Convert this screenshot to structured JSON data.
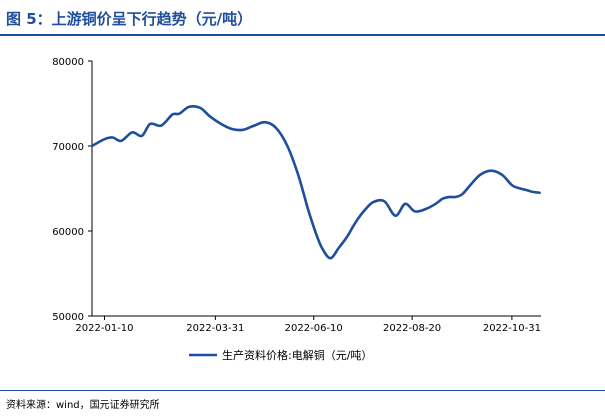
{
  "header": {
    "figure_title": "图 5：上游铜价呈下行趋势（元/吨）"
  },
  "footer": {
    "source": "资料来源：wind，国元证券研究所"
  },
  "colors": {
    "accent": "#1f4e9c",
    "series": "#1f4e9c",
    "axis": "#000000"
  },
  "chart_data": {
    "type": "line",
    "title": "",
    "xlabel": "",
    "ylabel": "",
    "ylim": [
      50000,
      80000
    ],
    "yticks": [
      50000,
      60000,
      70000,
      80000
    ],
    "xlim": [
      "2022-01-01",
      "2022-11-21"
    ],
    "xticks": [
      "2022-01-10",
      "2022-03-31",
      "2022-06-10",
      "2022-08-20",
      "2022-10-31"
    ],
    "grid": false,
    "legend": "bottom",
    "series": [
      {
        "name": "生产资料价格:电解铜（元/吨）",
        "x": [
          "2022-01-01",
          "2022-01-10",
          "2022-01-16",
          "2022-01-22",
          "2022-01-30",
          "2022-02-06",
          "2022-02-12",
          "2022-02-20",
          "2022-02-28",
          "2022-03-05",
          "2022-03-12",
          "2022-03-20",
          "2022-03-27",
          "2022-04-04",
          "2022-04-12",
          "2022-04-20",
          "2022-04-28",
          "2022-05-06",
          "2022-05-14",
          "2022-05-22",
          "2022-05-30",
          "2022-06-06",
          "2022-06-11",
          "2022-06-16",
          "2022-06-22",
          "2022-06-28",
          "2022-07-04",
          "2022-07-09",
          "2022-07-13",
          "2022-07-17",
          "2022-07-23",
          "2022-07-31",
          "2022-08-08",
          "2022-08-15",
          "2022-08-22",
          "2022-08-30",
          "2022-09-06",
          "2022-09-11",
          "2022-09-16",
          "2022-09-20",
          "2022-09-25",
          "2022-10-01",
          "2022-10-08",
          "2022-10-16",
          "2022-10-24",
          "2022-10-31",
          "2022-11-06",
          "2022-11-11",
          "2022-11-15",
          "2022-11-20"
        ],
        "y": [
          70000,
          70800,
          71000,
          70600,
          71600,
          71200,
          72600,
          72400,
          73700,
          73800,
          74600,
          74500,
          73500,
          72600,
          72000,
          71900,
          72400,
          72800,
          72100,
          70000,
          66500,
          62500,
          60000,
          58000,
          56800,
          58000,
          59300,
          60700,
          61700,
          62500,
          63400,
          63500,
          61800,
          63200,
          62300,
          62600,
          63200,
          63800,
          64000,
          64000,
          64300,
          65400,
          66600,
          67100,
          66600,
          65400,
          65000,
          64800,
          64600,
          64500
        ]
      }
    ]
  }
}
